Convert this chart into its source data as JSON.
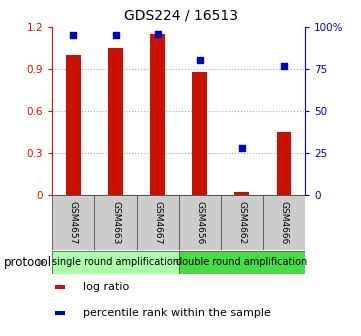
{
  "title": "GDS224 / 16513",
  "samples": [
    "GSM4657",
    "GSM4663",
    "GSM4667",
    "GSM4656",
    "GSM4662",
    "GSM4666"
  ],
  "log_ratio": [
    1.0,
    1.05,
    1.15,
    0.88,
    0.02,
    0.45
  ],
  "percentile_rank": [
    95,
    95,
    96,
    80,
    28,
    77
  ],
  "bar_color": "#cc1100",
  "square_color": "#0000cc",
  "ylim_left": [
    0,
    1.2
  ],
  "ylim_right": [
    0,
    100
  ],
  "yticks_left": [
    0,
    0.3,
    0.6,
    0.9,
    1.2
  ],
  "yticks_right": [
    0,
    25,
    50,
    75,
    100
  ],
  "ytick_labels_left": [
    "0",
    "0.3",
    "0.6",
    "0.9",
    "1.2"
  ],
  "ytick_labels_right": [
    "0",
    "25",
    "50",
    "75",
    "100%"
  ],
  "protocol_groups": [
    {
      "label": "single round amplification",
      "start": 0,
      "end": 3,
      "color": "#aaffaa"
    },
    {
      "label": "double round amplification",
      "start": 3,
      "end": 6,
      "color": "#44dd44"
    }
  ],
  "protocol_label": "protocol",
  "legend_items": [
    {
      "color": "#cc1100",
      "label": "log ratio"
    },
    {
      "color": "#0000cc",
      "label": "percentile rank within the sample"
    }
  ],
  "bar_width": 0.35,
  "grid_color": "#aaaaaa",
  "tick_color_left": "#cc1100",
  "tick_color_right": "#0000cc",
  "label_box_color": "#cccccc",
  "title_fontsize": 10,
  "tick_fontsize": 7.5,
  "sample_fontsize": 6.5,
  "legend_fontsize": 8,
  "proto_fontsize": 7
}
